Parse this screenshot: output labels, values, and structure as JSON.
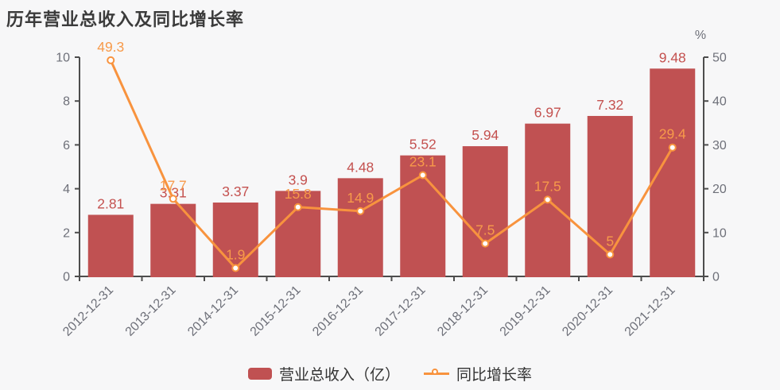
{
  "title": "历年营业总收入及同比增长率",
  "colors": {
    "background": "#f7f7f8",
    "bar": "#c05152",
    "bar_label": "#c4514f",
    "line": "#f8933e",
    "line_label": "#f79a4a",
    "axis": "#4d4d4d",
    "axis_label": "#6e7079",
    "title": "#3b3b3b",
    "legend_text": "#333333"
  },
  "chart_data": {
    "type": "bar+line combo",
    "title": "历年营业总收入及同比增长率",
    "categories": [
      "2012-12-31",
      "2013-12-31",
      "2014-12-31",
      "2015-12-31",
      "2016-12-31",
      "2017-12-31",
      "2018-12-31",
      "2019-12-31",
      "2020-12-31",
      "2021-12-31"
    ],
    "series": [
      {
        "name": "营业总收入（亿）",
        "type": "bar",
        "axis": "left",
        "values": [
          2.81,
          3.31,
          3.37,
          3.9,
          4.48,
          5.52,
          5.94,
          6.97,
          7.32,
          9.48
        ]
      },
      {
        "name": "同比增长率",
        "type": "line",
        "axis": "right",
        "values": [
          49.3,
          17.7,
          1.9,
          15.8,
          14.9,
          23.1,
          7.5,
          17.5,
          5,
          29.4
        ]
      }
    ],
    "left_axis": {
      "min": 0,
      "max": 10,
      "step": 2,
      "ticks": [
        0,
        2,
        4,
        6,
        8,
        10
      ]
    },
    "right_axis": {
      "min": 0,
      "max": 50,
      "step": 10,
      "ticks": [
        0,
        10,
        20,
        30,
        40,
        50
      ],
      "unit": "%"
    },
    "grid": false,
    "legend_position": "bottom"
  },
  "legend": {
    "items": [
      {
        "label": "营业总收入（亿）",
        "type": "bar"
      },
      {
        "label": "同比增长率",
        "type": "line"
      }
    ]
  }
}
